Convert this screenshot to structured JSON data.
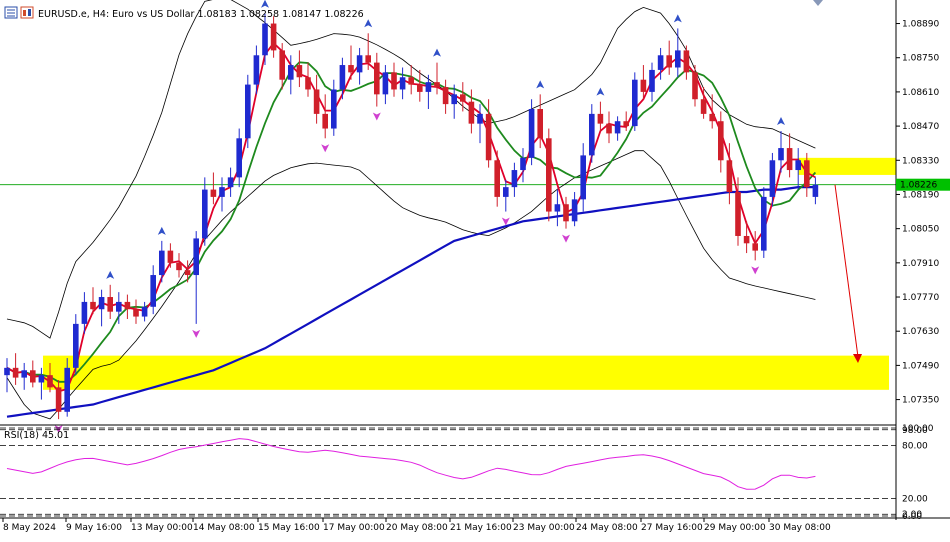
{
  "header": {
    "symbol_line": "EURUSD.e, H4:  Euro vs US Dollar  1.08183 1.08258 1.08147 1.08226"
  },
  "toolbar_icons": [
    "chart-window-icon",
    "chart-mode-icon"
  ],
  "price_marker": {
    "value": "1.08226",
    "color": "#00c000"
  },
  "colors": {
    "background": "#ffffff",
    "bull_candle": "#1f2ad0",
    "bear_candle": "#d01f2a",
    "ma_fast": "#e0002a",
    "ma_mid": "#1e8a1e",
    "ma_slow": "#1010c0",
    "bands": "#000000",
    "rsi": "#e020e0",
    "zone": "#ffff00",
    "fractal_up": "#3050c8",
    "fractal_down": "#d040d0",
    "arrow": "#e00000"
  },
  "chart_data": [
    {
      "type": "candlestick",
      "title": "EURUSD.e, H4:  Euro vs US Dollar",
      "ohlc_last": {
        "open": 1.08183,
        "high": 1.08258,
        "low": 1.08147,
        "close": 1.08226
      },
      "y_ticks": [
        "1.08890",
        "1.08750",
        "1.08610",
        "1.08470",
        "1.08330",
        "1.08190",
        "1.08050",
        "1.07910",
        "1.07770",
        "1.07630",
        "1.07490",
        "1.07350"
      ],
      "ylim": [
        1.0725,
        1.0897
      ],
      "x_ticks": [
        "8 May 2024",
        "9 May 16:00",
        "13 May 00:00",
        "14 May 08:00",
        "15 May 16:00",
        "17 May 00:00",
        "20 May 08:00",
        "21 May 16:00",
        "23 May 00:00",
        "24 May 08:00",
        "27 May 16:00",
        "29 May 00:00",
        "30 May 08:00"
      ],
      "grid": false,
      "candles": [
        [
          1.0745,
          1.0752,
          1.0738,
          1.0748
        ],
        [
          1.0748,
          1.0754,
          1.0741,
          1.0744
        ],
        [
          1.0744,
          1.075,
          1.0739,
          1.0747
        ],
        [
          1.0747,
          1.0751,
          1.074,
          1.0742
        ],
        [
          1.0742,
          1.0748,
          1.0735,
          1.0745
        ],
        [
          1.0745,
          1.075,
          1.0738,
          1.074
        ],
        [
          1.074,
          1.0743,
          1.0727,
          1.073
        ],
        [
          1.073,
          1.0752,
          1.0728,
          1.0748
        ],
        [
          1.0748,
          1.077,
          1.0745,
          1.0766
        ],
        [
          1.0766,
          1.0779,
          1.0762,
          1.0775
        ],
        [
          1.0775,
          1.0781,
          1.077,
          1.0772
        ],
        [
          1.0772,
          1.078,
          1.0765,
          1.0777
        ],
        [
          1.0777,
          1.0782,
          1.0768,
          1.0771
        ],
        [
          1.0771,
          1.0779,
          1.0766,
          1.0775
        ],
        [
          1.0775,
          1.0778,
          1.0768,
          1.0772
        ],
        [
          1.0772,
          1.0776,
          1.0766,
          1.0769
        ],
        [
          1.0769,
          1.0775,
          1.0767,
          1.0773
        ],
        [
          1.0773,
          1.079,
          1.077,
          1.0786
        ],
        [
          1.0786,
          1.08,
          1.0783,
          1.0796
        ],
        [
          1.0796,
          1.0799,
          1.0789,
          1.0791
        ],
        [
          1.0791,
          1.0795,
          1.0785,
          1.0788
        ],
        [
          1.0788,
          1.0792,
          1.0783,
          1.0786
        ],
        [
          1.0786,
          1.0804,
          1.0766,
          1.0801
        ],
        [
          1.0801,
          1.0826,
          1.0798,
          1.0821
        ],
        [
          1.0821,
          1.0828,
          1.0815,
          1.0818
        ],
        [
          1.0818,
          1.0826,
          1.0812,
          1.0822
        ],
        [
          1.0822,
          1.083,
          1.0818,
          1.0826
        ],
        [
          1.0826,
          1.0846,
          1.0822,
          1.0842
        ],
        [
          1.0842,
          1.0868,
          1.0838,
          1.0864
        ],
        [
          1.0864,
          1.088,
          1.086,
          1.0876
        ],
        [
          1.0876,
          1.0893,
          1.0872,
          1.0889
        ],
        [
          1.0889,
          1.0892,
          1.0875,
          1.0878
        ],
        [
          1.0878,
          1.0881,
          1.0862,
          1.0866
        ],
        [
          1.0866,
          1.0876,
          1.086,
          1.0872
        ],
        [
          1.0872,
          1.0878,
          1.0863,
          1.0867
        ],
        [
          1.0867,
          1.0873,
          1.0859,
          1.0862
        ],
        [
          1.0862,
          1.0868,
          1.0848,
          1.0852
        ],
        [
          1.0852,
          1.086,
          1.0842,
          1.0846
        ],
        [
          1.0846,
          1.0866,
          1.0843,
          1.0862
        ],
        [
          1.0862,
          1.0875,
          1.0858,
          1.0872
        ],
        [
          1.0872,
          1.088,
          1.0866,
          1.0869
        ],
        [
          1.0869,
          1.0879,
          1.0864,
          1.0876
        ],
        [
          1.0876,
          1.0885,
          1.087,
          1.0873
        ],
        [
          1.0873,
          1.0877,
          1.0855,
          1.086
        ],
        [
          1.086,
          1.0872,
          1.0856,
          1.0869
        ],
        [
          1.0869,
          1.0873,
          1.0859,
          1.0862
        ],
        [
          1.0862,
          1.0871,
          1.0858,
          1.0867
        ],
        [
          1.0867,
          1.0872,
          1.086,
          1.0864
        ],
        [
          1.0864,
          1.087,
          1.0857,
          1.0861
        ],
        [
          1.0861,
          1.0868,
          1.0854,
          1.0865
        ],
        [
          1.0865,
          1.0873,
          1.086,
          1.0863
        ],
        [
          1.0863,
          1.0866,
          1.0852,
          1.0856
        ],
        [
          1.0856,
          1.0864,
          1.085,
          1.086
        ],
        [
          1.086,
          1.0865,
          1.0853,
          1.0857
        ],
        [
          1.0857,
          1.0862,
          1.0844,
          1.0848
        ],
        [
          1.0848,
          1.0856,
          1.084,
          1.0852
        ],
        [
          1.0852,
          1.0858,
          1.083,
          1.0833
        ],
        [
          1.0833,
          1.0837,
          1.0814,
          1.0818
        ],
        [
          1.0818,
          1.0825,
          1.0812,
          1.0822
        ],
        [
          1.0822,
          1.0832,
          1.0818,
          1.0829
        ],
        [
          1.0829,
          1.0838,
          1.0824,
          1.0834
        ],
        [
          1.0834,
          1.0858,
          1.0831,
          1.0854
        ],
        [
          1.0854,
          1.086,
          1.0838,
          1.0842
        ],
        [
          1.0842,
          1.0846,
          1.0808,
          1.0812
        ],
        [
          1.0812,
          1.0821,
          1.0806,
          1.0815
        ],
        [
          1.0815,
          1.0818,
          1.0805,
          1.0808
        ],
        [
          1.0808,
          1.082,
          1.0806,
          1.0817
        ],
        [
          1.0817,
          1.084,
          1.0812,
          1.0835
        ],
        [
          1.0835,
          1.0856,
          1.0832,
          1.0852
        ],
        [
          1.0852,
          1.0857,
          1.0845,
          1.0848
        ],
        [
          1.0848,
          1.0853,
          1.084,
          1.0844
        ],
        [
          1.0844,
          1.0851,
          1.0841,
          1.0849
        ],
        [
          1.0849,
          1.0853,
          1.0845,
          1.0847
        ],
        [
          1.0847,
          1.0869,
          1.0845,
          1.0866
        ],
        [
          1.0866,
          1.0872,
          1.0858,
          1.0861
        ],
        [
          1.0861,
          1.0873,
          1.0857,
          1.087
        ],
        [
          1.087,
          1.0879,
          1.0866,
          1.0876
        ],
        [
          1.0876,
          1.0882,
          1.0868,
          1.0871
        ],
        [
          1.0871,
          1.0887,
          1.0867,
          1.0878
        ],
        [
          1.0878,
          1.088,
          1.0866,
          1.0869
        ],
        [
          1.0869,
          1.0872,
          1.0855,
          1.0858
        ],
        [
          1.0858,
          1.0863,
          1.085,
          1.0852
        ],
        [
          1.0852,
          1.086,
          1.0846,
          1.0849
        ],
        [
          1.0849,
          1.0853,
          1.0828,
          1.0833
        ],
        [
          1.0833,
          1.084,
          1.0815,
          1.082
        ],
        [
          1.082,
          1.0826,
          1.0798,
          1.0802
        ],
        [
          1.0802,
          1.0808,
          1.0795,
          1.0799
        ],
        [
          1.0799,
          1.0804,
          1.0792,
          1.0796
        ],
        [
          1.0796,
          1.0822,
          1.0793,
          1.0818
        ],
        [
          1.0818,
          1.0836,
          1.0814,
          1.0833
        ],
        [
          1.0833,
          1.0845,
          1.0828,
          1.0838
        ],
        [
          1.0838,
          1.0844,
          1.0826,
          1.0829
        ],
        [
          1.0829,
          1.0838,
          1.0821,
          1.0833
        ],
        [
          1.0833,
          1.0836,
          1.0818,
          1.0822
        ],
        [
          1.0818,
          1.0826,
          1.0815,
          1.0823
        ]
      ],
      "ma_slow": [
        1.0728,
        1.0729,
        1.073,
        1.0731,
        1.0732,
        1.0733,
        1.0735,
        1.0737,
        1.0739,
        1.0741,
        1.0743,
        1.0745,
        1.0747,
        1.075,
        1.0753,
        1.0756,
        1.076,
        1.0764,
        1.0768,
        1.0772,
        1.0776,
        1.078,
        1.0784,
        1.0788,
        1.0792,
        1.0796,
        1.08,
        1.0802,
        1.0804,
        1.0806,
        1.0808,
        1.0809,
        1.081,
        1.0811,
        1.0812,
        1.0813,
        1.0814,
        1.0815,
        1.0816,
        1.0817,
        1.0818,
        1.0819,
        1.082,
        1.082,
        1.0821,
        1.0821,
        1.0822,
        1.0822
      ],
      "bands_upper": [
        1.0768,
        1.0766,
        1.076,
        1.079,
        1.08,
        1.0812,
        1.0828,
        1.085,
        1.088,
        1.0898,
        1.09,
        1.0895,
        1.0888,
        1.088,
        1.0882,
        1.0885,
        1.0884,
        1.088,
        1.0875,
        1.0868,
        1.0862,
        1.0854,
        1.0848,
        1.085,
        1.0854,
        1.0858,
        1.0862,
        1.087,
        1.0888,
        1.0896,
        1.0893,
        1.088,
        1.086,
        1.0852,
        1.0847,
        1.0846,
        1.0842,
        1.0838
      ],
      "bands_lower": [
        1.0744,
        1.073,
        1.0727,
        1.0738,
        1.0748,
        1.075,
        1.076,
        1.0772,
        1.0785,
        1.08,
        1.081,
        1.0818,
        1.0826,
        1.083,
        1.0832,
        1.0831,
        1.083,
        1.0822,
        1.0814,
        1.081,
        1.0808,
        1.0804,
        1.0802,
        1.0806,
        1.0812,
        1.082,
        1.0826,
        1.083,
        1.0834,
        1.0838,
        1.083,
        1.0812,
        1.0795,
        1.0785,
        1.0782,
        1.078,
        1.0778,
        1.0776
      ],
      "zones": [
        {
          "from": 1.0827,
          "to": 1.0834
        },
        {
          "from": 1.0739,
          "to": 1.0753
        }
      ],
      "projected_target": 1.075
    },
    {
      "type": "line",
      "title": "RSI(18) 45.01",
      "indicator": "RSI",
      "period": 18,
      "last_value": 45.01,
      "ylim": [
        0,
        100
      ],
      "levels": [
        100,
        98,
        80,
        20,
        2,
        0
      ],
      "level_labels": [
        "100.00",
        "98.00",
        "80.00",
        "20.00",
        "2.00",
        "0.00"
      ],
      "values": [
        54,
        52,
        50,
        48,
        51,
        56,
        60,
        63,
        65,
        66,
        64,
        62,
        60,
        58,
        60,
        63,
        66,
        70,
        74,
        77,
        78,
        80,
        82,
        84,
        86,
        88,
        87,
        84,
        81,
        78,
        76,
        74,
        72,
        73,
        75,
        74,
        72,
        70,
        68,
        67,
        66,
        65,
        64,
        62,
        60,
        55,
        50,
        47,
        44,
        42,
        44,
        48,
        52,
        55,
        52,
        50,
        48,
        46,
        48,
        52,
        56,
        58,
        60,
        62,
        64,
        66,
        67,
        68,
        70,
        69,
        67,
        64,
        60,
        56,
        52,
        48,
        46,
        44,
        38,
        31,
        30,
        31,
        40,
        46,
        47,
        44,
        43,
        45
      ]
    }
  ]
}
